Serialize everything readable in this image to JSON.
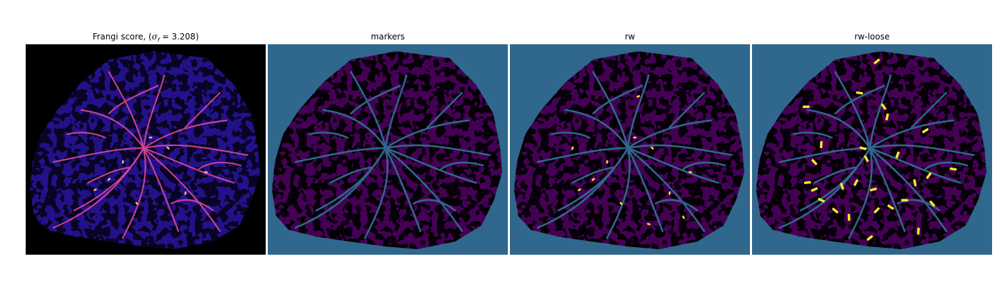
{
  "panels": [
    {
      "title_prefix": "Frangi score, (",
      "title_symbol": "σ",
      "title_subscript": "f",
      "title_suffix": " = 3.208)",
      "colormap": "magma",
      "background": "#000000",
      "foreground": "#23118a",
      "vessel": "#d8479a",
      "highlight": "#fcb27a"
    },
    {
      "title": "markers",
      "colormap": "viridis",
      "background": "#30678d",
      "foreground": "#440154",
      "vessel": "#30678d"
    },
    {
      "title": "rw",
      "colormap": "viridis",
      "background": "#30678d",
      "foreground": "#440154",
      "vessel": "#30678d",
      "highlight": "#fde725"
    },
    {
      "title": "rw-loose",
      "colormap": "viridis",
      "background": "#30678d",
      "foreground": "#440154",
      "vessel": "#30678d",
      "highlight": "#fde725"
    }
  ]
}
